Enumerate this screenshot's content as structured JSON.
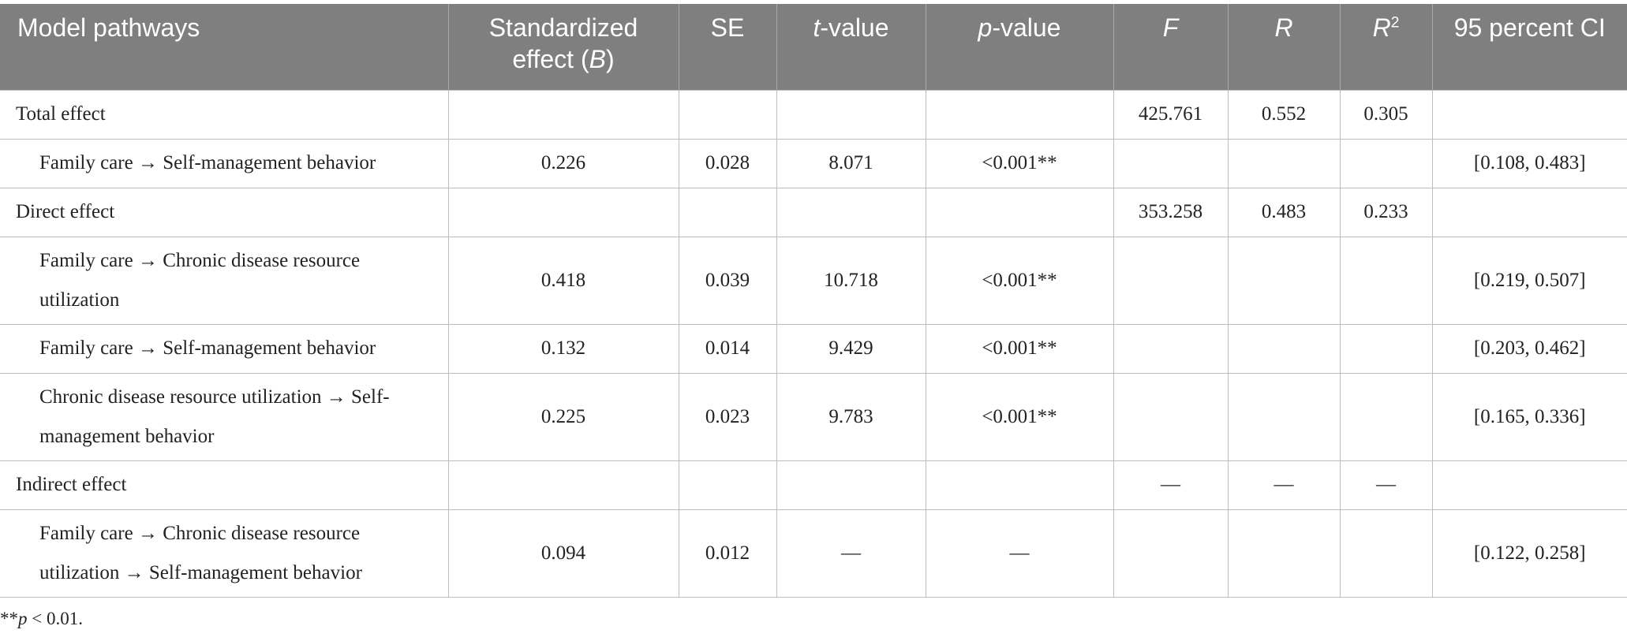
{
  "table": {
    "header": [
      {
        "parts": [
          {
            "text": "Model pathways"
          }
        ]
      },
      {
        "parts": [
          {
            "text": "Standardized effect ("
          },
          {
            "text": "B",
            "italic": true
          },
          {
            "text": ")"
          }
        ]
      },
      {
        "parts": [
          {
            "text": "SE"
          }
        ]
      },
      {
        "parts": [
          {
            "text": "t",
            "italic": true
          },
          {
            "text": "-value"
          }
        ]
      },
      {
        "parts": [
          {
            "text": "p",
            "italic": true
          },
          {
            "text": "-value"
          }
        ]
      },
      {
        "parts": [
          {
            "text": "F",
            "italic": true
          }
        ]
      },
      {
        "parts": [
          {
            "text": "R",
            "italic": true
          }
        ]
      },
      {
        "parts": [
          {
            "text": "R",
            "italic": true
          },
          {
            "text": "2",
            "sup": true
          }
        ]
      },
      {
        "parts": [
          {
            "text": "95 percent CI"
          }
        ]
      }
    ],
    "sections": [
      {
        "label": "Total effect",
        "F": "425.761",
        "R": "0.552",
        "R2": "0.305",
        "pathways": [
          {
            "label": "Family care → Self-management behavior",
            "B": "0.226",
            "SE": "0.028",
            "t": "8.071",
            "p": "<0.001**",
            "CI": "[0.108, 0.483]"
          }
        ]
      },
      {
        "label": "Direct effect",
        "F": "353.258",
        "R": "0.483",
        "R2": "0.233",
        "pathways": [
          {
            "label": "Family care → Chronic disease resource utilization",
            "B": "0.418",
            "SE": "0.039",
            "t": "10.718",
            "p": "<0.001**",
            "CI": "[0.219, 0.507]"
          },
          {
            "label": "Family care → Self-management behavior",
            "B": "0.132",
            "SE": "0.014",
            "t": "9.429",
            "p": "<0.001**",
            "CI": "[0.203, 0.462]"
          },
          {
            "label": "Chronic disease resource utilization → Self-management behavior",
            "B": "0.225",
            "SE": "0.023",
            "t": "9.783",
            "p": "<0.001**",
            "CI": "[0.165, 0.336]"
          }
        ]
      },
      {
        "label": "Indirect effect",
        "F": "—",
        "R": "—",
        "R2": "—",
        "pathways": [
          {
            "label": "Family care → Chronic disease resource utilization → Self-management behavior",
            "B": "0.094",
            "SE": "0.012",
            "t": "—",
            "p": "—",
            "CI": "[0.122, 0.258]"
          }
        ]
      }
    ],
    "footnote": {
      "parts": [
        {
          "text": "**"
        },
        {
          "text": "p",
          "italic": true
        },
        {
          "text": " < 0.01."
        }
      ]
    }
  }
}
